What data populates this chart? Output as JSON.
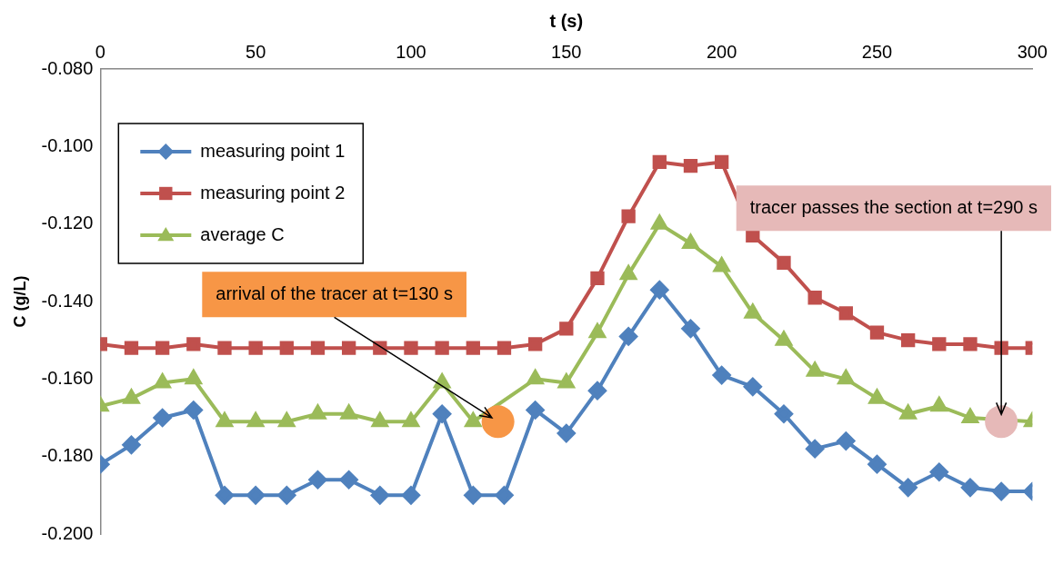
{
  "chart_data": {
    "type": "line",
    "xlabel": "t (s)",
    "ylabel": "C (g/L)",
    "x": [
      0,
      10,
      20,
      30,
      40,
      50,
      60,
      70,
      80,
      90,
      100,
      110,
      120,
      130,
      140,
      150,
      160,
      170,
      180,
      190,
      200,
      210,
      220,
      230,
      240,
      250,
      260,
      270,
      280,
      290,
      300
    ],
    "series": [
      {
        "name": "measuring point 1",
        "color": "#4f81bd",
        "marker": "diamond",
        "values": [
          -0.182,
          -0.177,
          -0.17,
          -0.168,
          -0.19,
          -0.19,
          -0.19,
          -0.186,
          -0.186,
          -0.19,
          -0.19,
          -0.169,
          -0.19,
          -0.19,
          -0.168,
          -0.174,
          -0.163,
          -0.149,
          -0.137,
          -0.147,
          -0.159,
          -0.162,
          -0.169,
          -0.178,
          -0.176,
          -0.182,
          -0.188,
          -0.184,
          -0.188,
          -0.189,
          -0.189
        ]
      },
      {
        "name": "measuring point 2",
        "color": "#c0504d",
        "marker": "square",
        "values": [
          -0.151,
          -0.152,
          -0.152,
          -0.151,
          -0.152,
          -0.152,
          -0.152,
          -0.152,
          -0.152,
          -0.152,
          -0.152,
          -0.152,
          -0.152,
          -0.152,
          -0.151,
          -0.147,
          -0.134,
          -0.118,
          -0.104,
          -0.105,
          -0.104,
          -0.123,
          -0.13,
          -0.139,
          -0.143,
          -0.148,
          -0.15,
          -0.151,
          -0.151,
          -0.152,
          -0.152
        ]
      },
      {
        "name": "average C",
        "color": "#9bbb59",
        "marker": "triangle",
        "values": [
          -0.167,
          -0.165,
          -0.161,
          -0.16,
          -0.171,
          -0.171,
          -0.171,
          -0.169,
          -0.169,
          -0.171,
          -0.171,
          -0.161,
          -0.171,
          null,
          -0.16,
          -0.161,
          -0.148,
          -0.133,
          -0.12,
          -0.125,
          -0.131,
          -0.143,
          -0.15,
          -0.158,
          -0.16,
          -0.165,
          -0.169,
          -0.167,
          -0.17,
          null,
          -0.171
        ]
      }
    ],
    "xlim": [
      0,
      300
    ],
    "xticks": [
      0,
      50,
      100,
      150,
      200,
      250,
      300
    ],
    "ylim": [
      -0.2,
      -0.08
    ],
    "yticks": [
      {
        "value": -0.2,
        "label": "-0.200"
      },
      {
        "value": -0.18,
        "label": "-0.180"
      },
      {
        "value": -0.16,
        "label": "-0.160"
      },
      {
        "value": -0.14,
        "label": "-0.140"
      },
      {
        "value": -0.12,
        "label": "-0.120"
      },
      {
        "value": -0.1,
        "label": "-0.100"
      },
      {
        "value": -0.08,
        "label": "-0.080"
      }
    ],
    "grid": false,
    "legend": "top left",
    "line_style": "solid",
    "annotations": [
      {
        "text": "arrival of the tracer at t=130 s",
        "x": 128,
        "y": -0.171
      },
      {
        "text": "tracer passes the section at t=290 s",
        "x": 290,
        "y": -0.171
      }
    ]
  }
}
